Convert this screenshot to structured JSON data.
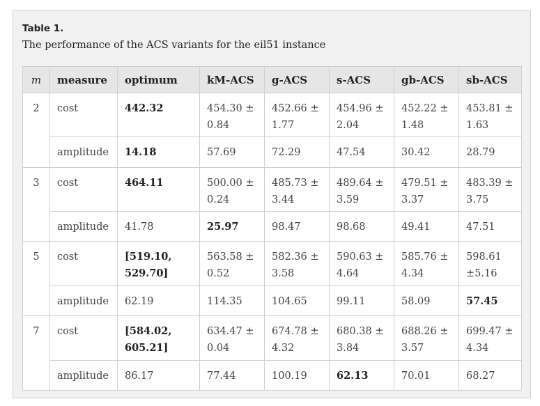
{
  "caption": {
    "label": "Table 1.",
    "text": "The performance of the ACS variants for the eil51 instance"
  },
  "headers": [
    "m",
    "measure",
    "optimum",
    "kM-ACS",
    "g-ACS",
    "s-ACS",
    "gb-ACS",
    "sb-ACS"
  ],
  "groups": [
    {
      "m": "2",
      "cost": {
        "measure": "cost",
        "optimum": "442.32",
        "kM-ACS": "454.30 ± 0.84",
        "g-ACS": "452.66 ± 1.77",
        "s-ACS": "454.96 ± 2.04",
        "gb-ACS": "452.22 ± 1.48",
        "sb-ACS": "453.81 ± 1.63"
      },
      "amplitude": {
        "measure": "amplitude",
        "optimum": "14.18",
        "kM-ACS": "57.69",
        "g-ACS": "72.29",
        "s-ACS": "47.54",
        "gb-ACS": "30.42",
        "sb-ACS": "28.79"
      }
    },
    {
      "m": "3",
      "cost": {
        "measure": "cost",
        "optimum": "464.11",
        "kM-ACS": "500.00 ± 0.24",
        "g-ACS": "485.73 ± 3.44",
        "s-ACS": "489.64 ± 3.59",
        "gb-ACS": "479.51 ± 3.37",
        "sb-ACS": "483.39 ± 3.75"
      },
      "amplitude": {
        "measure": "amplitude",
        "optimum": "41.78",
        "kM-ACS": "25.97",
        "g-ACS": "98.47",
        "s-ACS": "98.68",
        "gb-ACS": "49.41",
        "sb-ACS": "47.51"
      }
    },
    {
      "m": "5",
      "cost": {
        "measure": "cost",
        "optimum": "[519.10, 529.70]",
        "kM-ACS": "563.58 ± 0.52",
        "g-ACS": "582.36 ± 3.58",
        "s-ACS": "590.63 ± 4.64",
        "gb-ACS": "585.76 ± 4.34",
        "sb-ACS": "598.61 ±5.16"
      },
      "amplitude": {
        "measure": "amplitude",
        "optimum": "62.19",
        "kM-ACS": "114.35",
        "g-ACS": "104.65",
        "s-ACS": "99.11",
        "gb-ACS": "58.09",
        "sb-ACS": "57.45"
      }
    },
    {
      "m": "7",
      "cost": {
        "measure": "cost",
        "optimum": "[584.02, 605.21]",
        "kM-ACS": "634.47 ± 0.04",
        "g-ACS": "674.78 ± 4.32",
        "s-ACS": "680.38 ± 3.84",
        "gb-ACS": "688.26 ± 3.57",
        "sb-ACS": "699.47 ± 4.34"
      },
      "amplitude": {
        "measure": "amplitude",
        "optimum": "86.17",
        "kM-ACS": "77.44",
        "g-ACS": "100.19",
        "s-ACS": "62.13",
        "gb-ACS": "70.01",
        "sb-ACS": "68.27"
      }
    }
  ]
}
